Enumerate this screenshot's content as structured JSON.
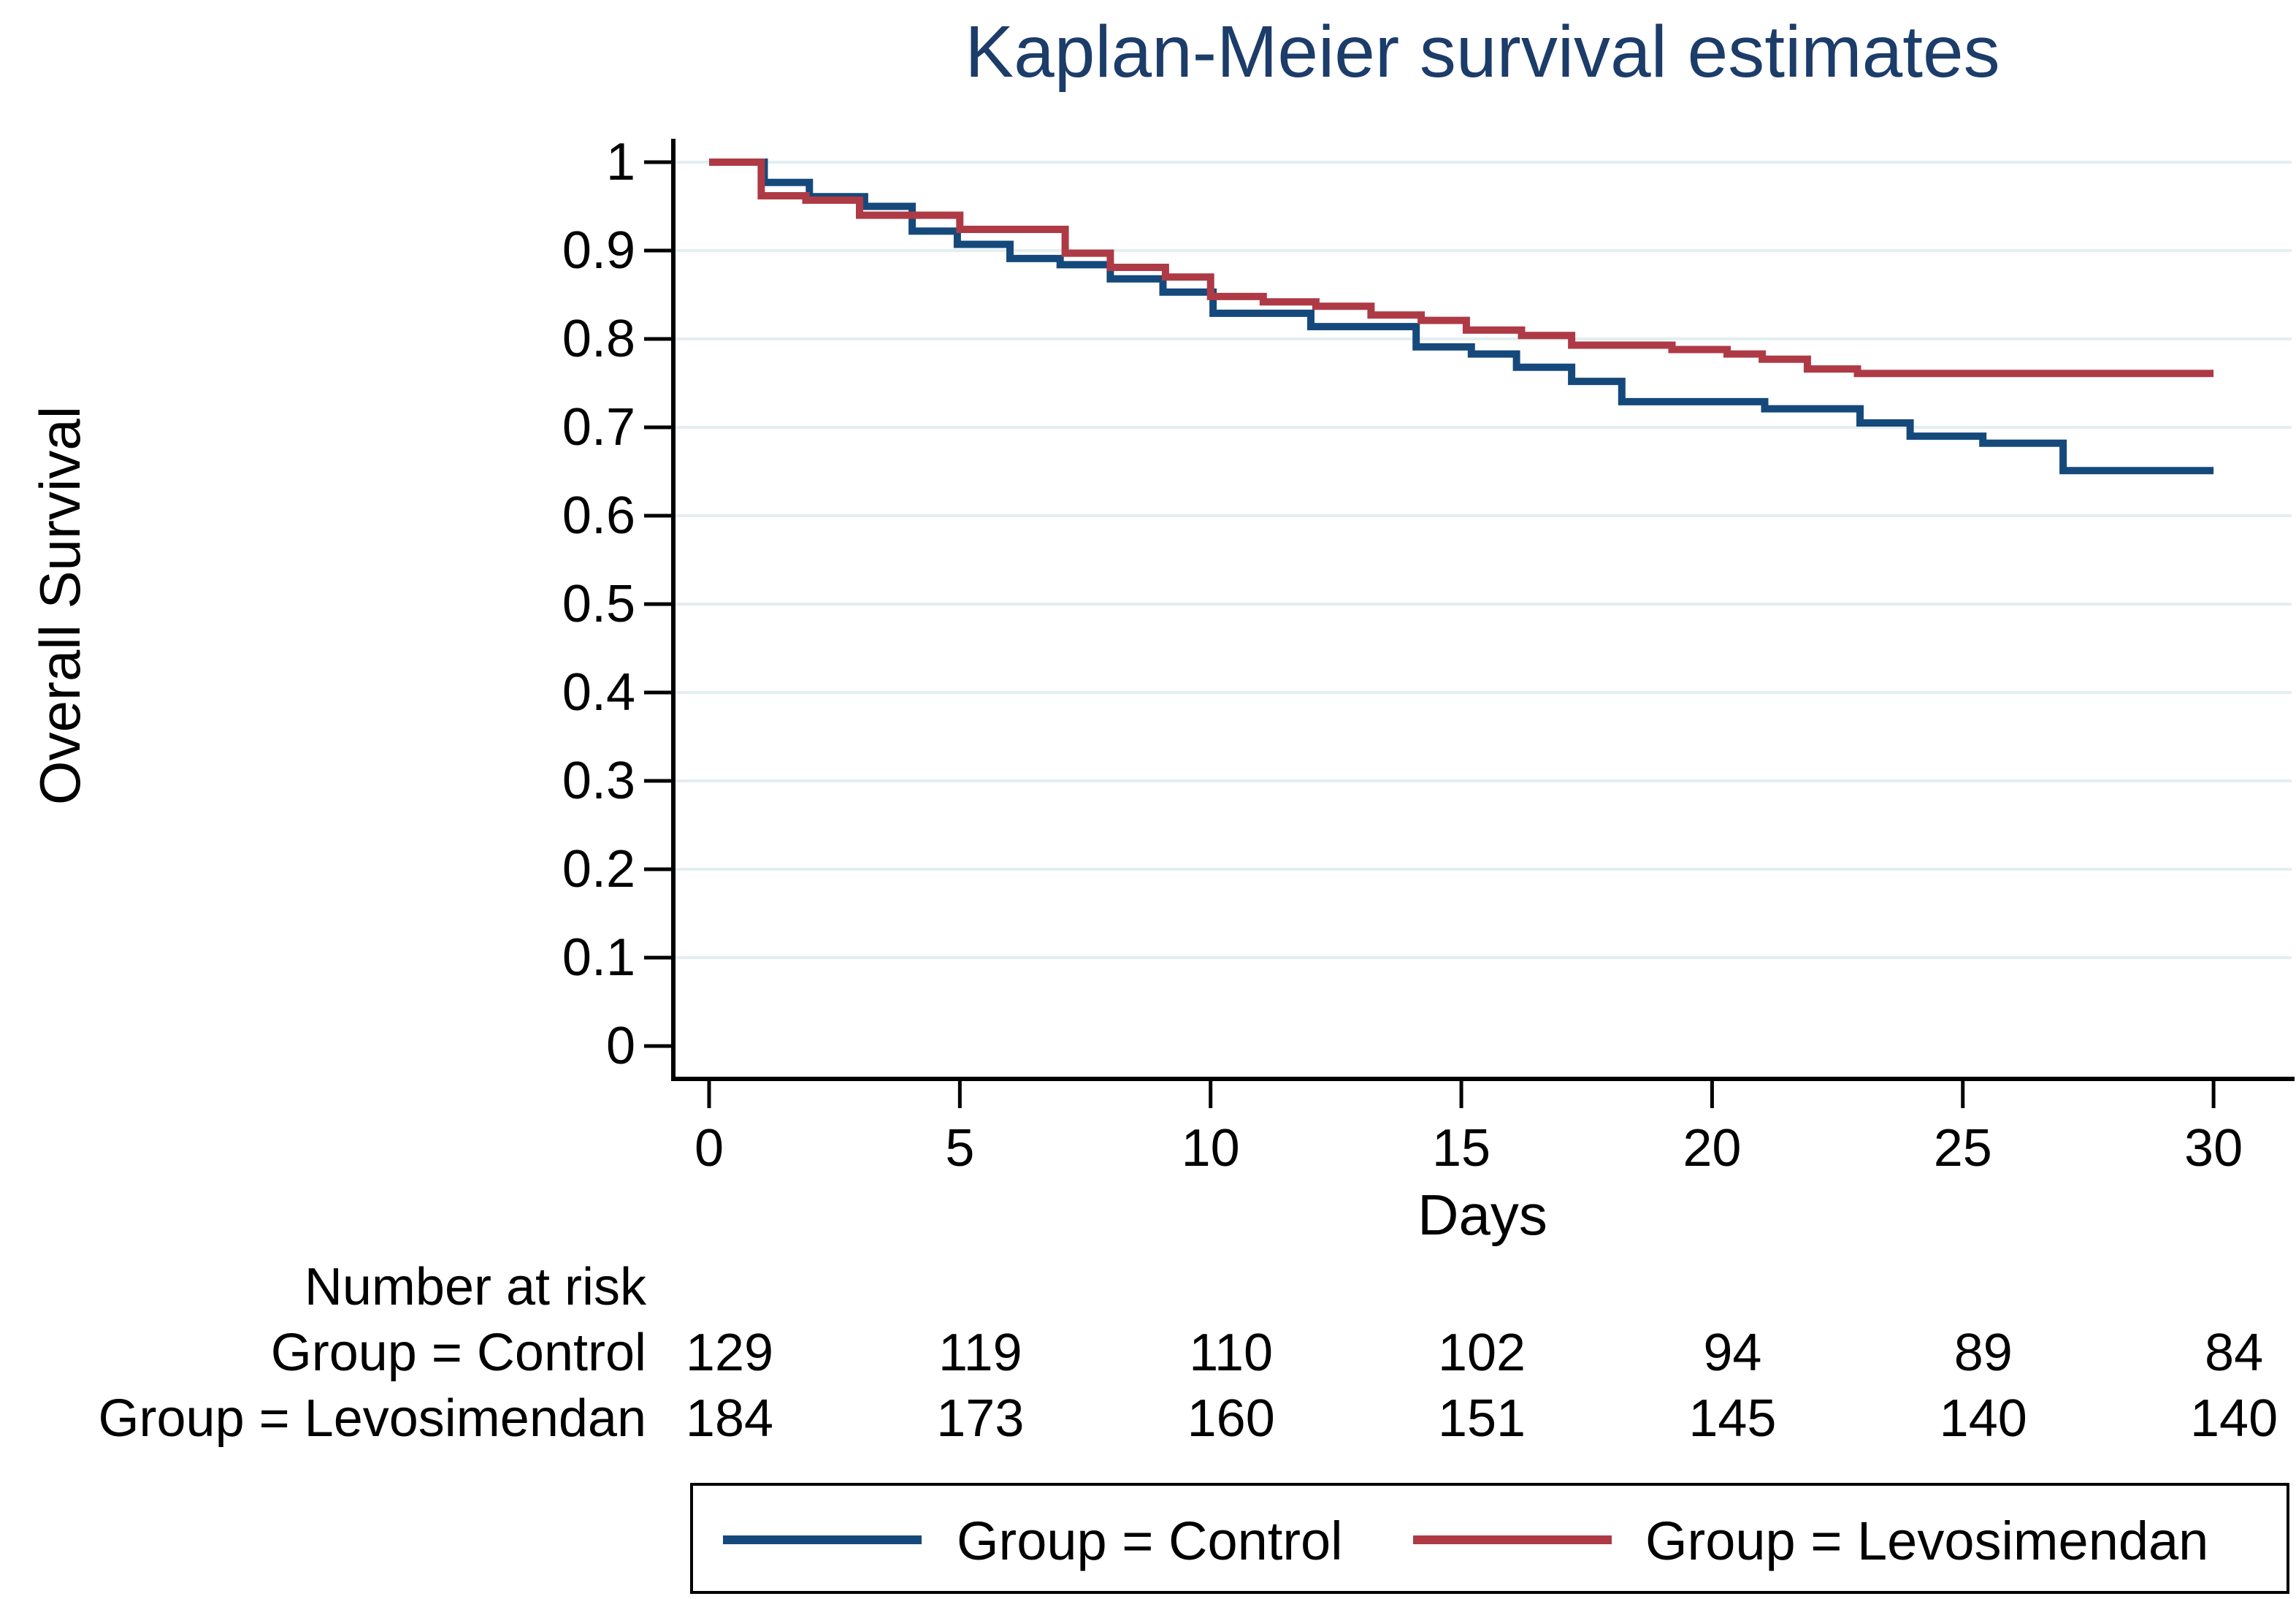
{
  "title": {
    "text": "Kaplan-Meier survival estimates",
    "color": "#1c3c69"
  },
  "y_axis": {
    "label": "Overall Survival",
    "tick_labels": [
      "1",
      "0.9",
      "0.8",
      "0.7",
      "0.6",
      "0.5",
      "0.4",
      "0.3",
      "0.2",
      "0.1",
      "0"
    ],
    "tick_values": [
      1,
      0.9,
      0.8,
      0.7,
      0.6,
      0.5,
      0.4,
      0.3,
      0.2,
      0.1,
      0
    ]
  },
  "x_axis": {
    "label": "Days",
    "tick_labels": [
      "0",
      "5",
      "10",
      "15",
      "20",
      "25",
      "30"
    ],
    "tick_values": [
      0,
      5,
      10,
      15,
      20,
      25,
      30
    ]
  },
  "risk_table": {
    "heading": "Number at risk",
    "rows": [
      {
        "label": "Group = Control",
        "counts": [
          "129",
          "119",
          "110",
          "102",
          "94",
          "89",
          "84"
        ]
      },
      {
        "label": "Group = Levosimendan",
        "counts": [
          "184",
          "173",
          "160",
          "151",
          "145",
          "140",
          "140"
        ]
      }
    ]
  },
  "legend": {
    "entries": [
      {
        "label": "Group = Control",
        "color": "#15497b"
      },
      {
        "label": "Group = Levosimendan",
        "color": "#ae3a46"
      }
    ]
  },
  "colors": {
    "grid": "#e3eef1",
    "axis": "#000000",
    "text": "#000000",
    "title": "#1c3c69",
    "control_line": "#15497b",
    "levosimendan_line": "#ae3a46"
  },
  "chart_data": {
    "type": "line",
    "subtype": "kaplan-meier-step",
    "step": "post",
    "title": "Kaplan-Meier survival estimates",
    "xlabel": "Days",
    "ylabel": "Overall Survival",
    "xlim": [
      0,
      30
    ],
    "ylim": [
      0,
      1
    ],
    "x_ticks": [
      0,
      5,
      10,
      15,
      20,
      25,
      30
    ],
    "y_ticks": [
      0,
      0.1,
      0.2,
      0.3,
      0.4,
      0.5,
      0.6,
      0.7,
      0.8,
      0.9,
      1
    ],
    "grid": "horizontal",
    "legend_position": "bottom",
    "series": [
      {
        "name": "Group = Control",
        "color": "#15497b",
        "n_start": 129,
        "number_at_risk": {
          "days": [
            0,
            5,
            10,
            15,
            20,
            25,
            30
          ],
          "counts": [
            129,
            119,
            110,
            102,
            94,
            89,
            84
          ]
        },
        "points": [
          [
            0,
            1.0
          ],
          [
            1.1,
            0.977
          ],
          [
            2.0,
            0.961
          ],
          [
            3.1,
            0.95
          ],
          [
            4.05,
            0.922
          ],
          [
            4.95,
            0.907
          ],
          [
            6.0,
            0.891
          ],
          [
            7.0,
            0.884
          ],
          [
            8.0,
            0.868
          ],
          [
            9.05,
            0.853
          ],
          [
            10.05,
            0.829
          ],
          [
            12.0,
            0.814
          ],
          [
            14.1,
            0.791
          ],
          [
            15.2,
            0.783
          ],
          [
            16.1,
            0.768
          ],
          [
            17.2,
            0.752
          ],
          [
            18.2,
            0.729
          ],
          [
            21.05,
            0.721
          ],
          [
            22.95,
            0.705
          ],
          [
            23.95,
            0.69
          ],
          [
            25.4,
            0.682
          ],
          [
            27.0,
            0.651
          ],
          [
            30,
            0.651
          ]
        ]
      },
      {
        "name": "Group = Levosimendan",
        "color": "#ae3a46",
        "n_start": 184,
        "number_at_risk": {
          "days": [
            0,
            5,
            10,
            15,
            20,
            25,
            30
          ],
          "counts": [
            184,
            173,
            160,
            151,
            145,
            140,
            140
          ]
        },
        "points": [
          [
            0,
            1.0
          ],
          [
            1.04,
            0.962
          ],
          [
            1.93,
            0.957
          ],
          [
            3.0,
            0.94
          ],
          [
            5.0,
            0.924
          ],
          [
            7.1,
            0.897
          ],
          [
            8.0,
            0.881
          ],
          [
            9.1,
            0.87
          ],
          [
            10.0,
            0.848
          ],
          [
            11.05,
            0.842
          ],
          [
            12.1,
            0.837
          ],
          [
            13.2,
            0.827
          ],
          [
            14.2,
            0.821
          ],
          [
            15.1,
            0.81
          ],
          [
            16.2,
            0.804
          ],
          [
            17.2,
            0.793
          ],
          [
            19.2,
            0.788
          ],
          [
            20.3,
            0.783
          ],
          [
            21.0,
            0.777
          ],
          [
            21.9,
            0.766
          ],
          [
            22.9,
            0.761
          ],
          [
            30,
            0.761
          ]
        ]
      }
    ]
  }
}
